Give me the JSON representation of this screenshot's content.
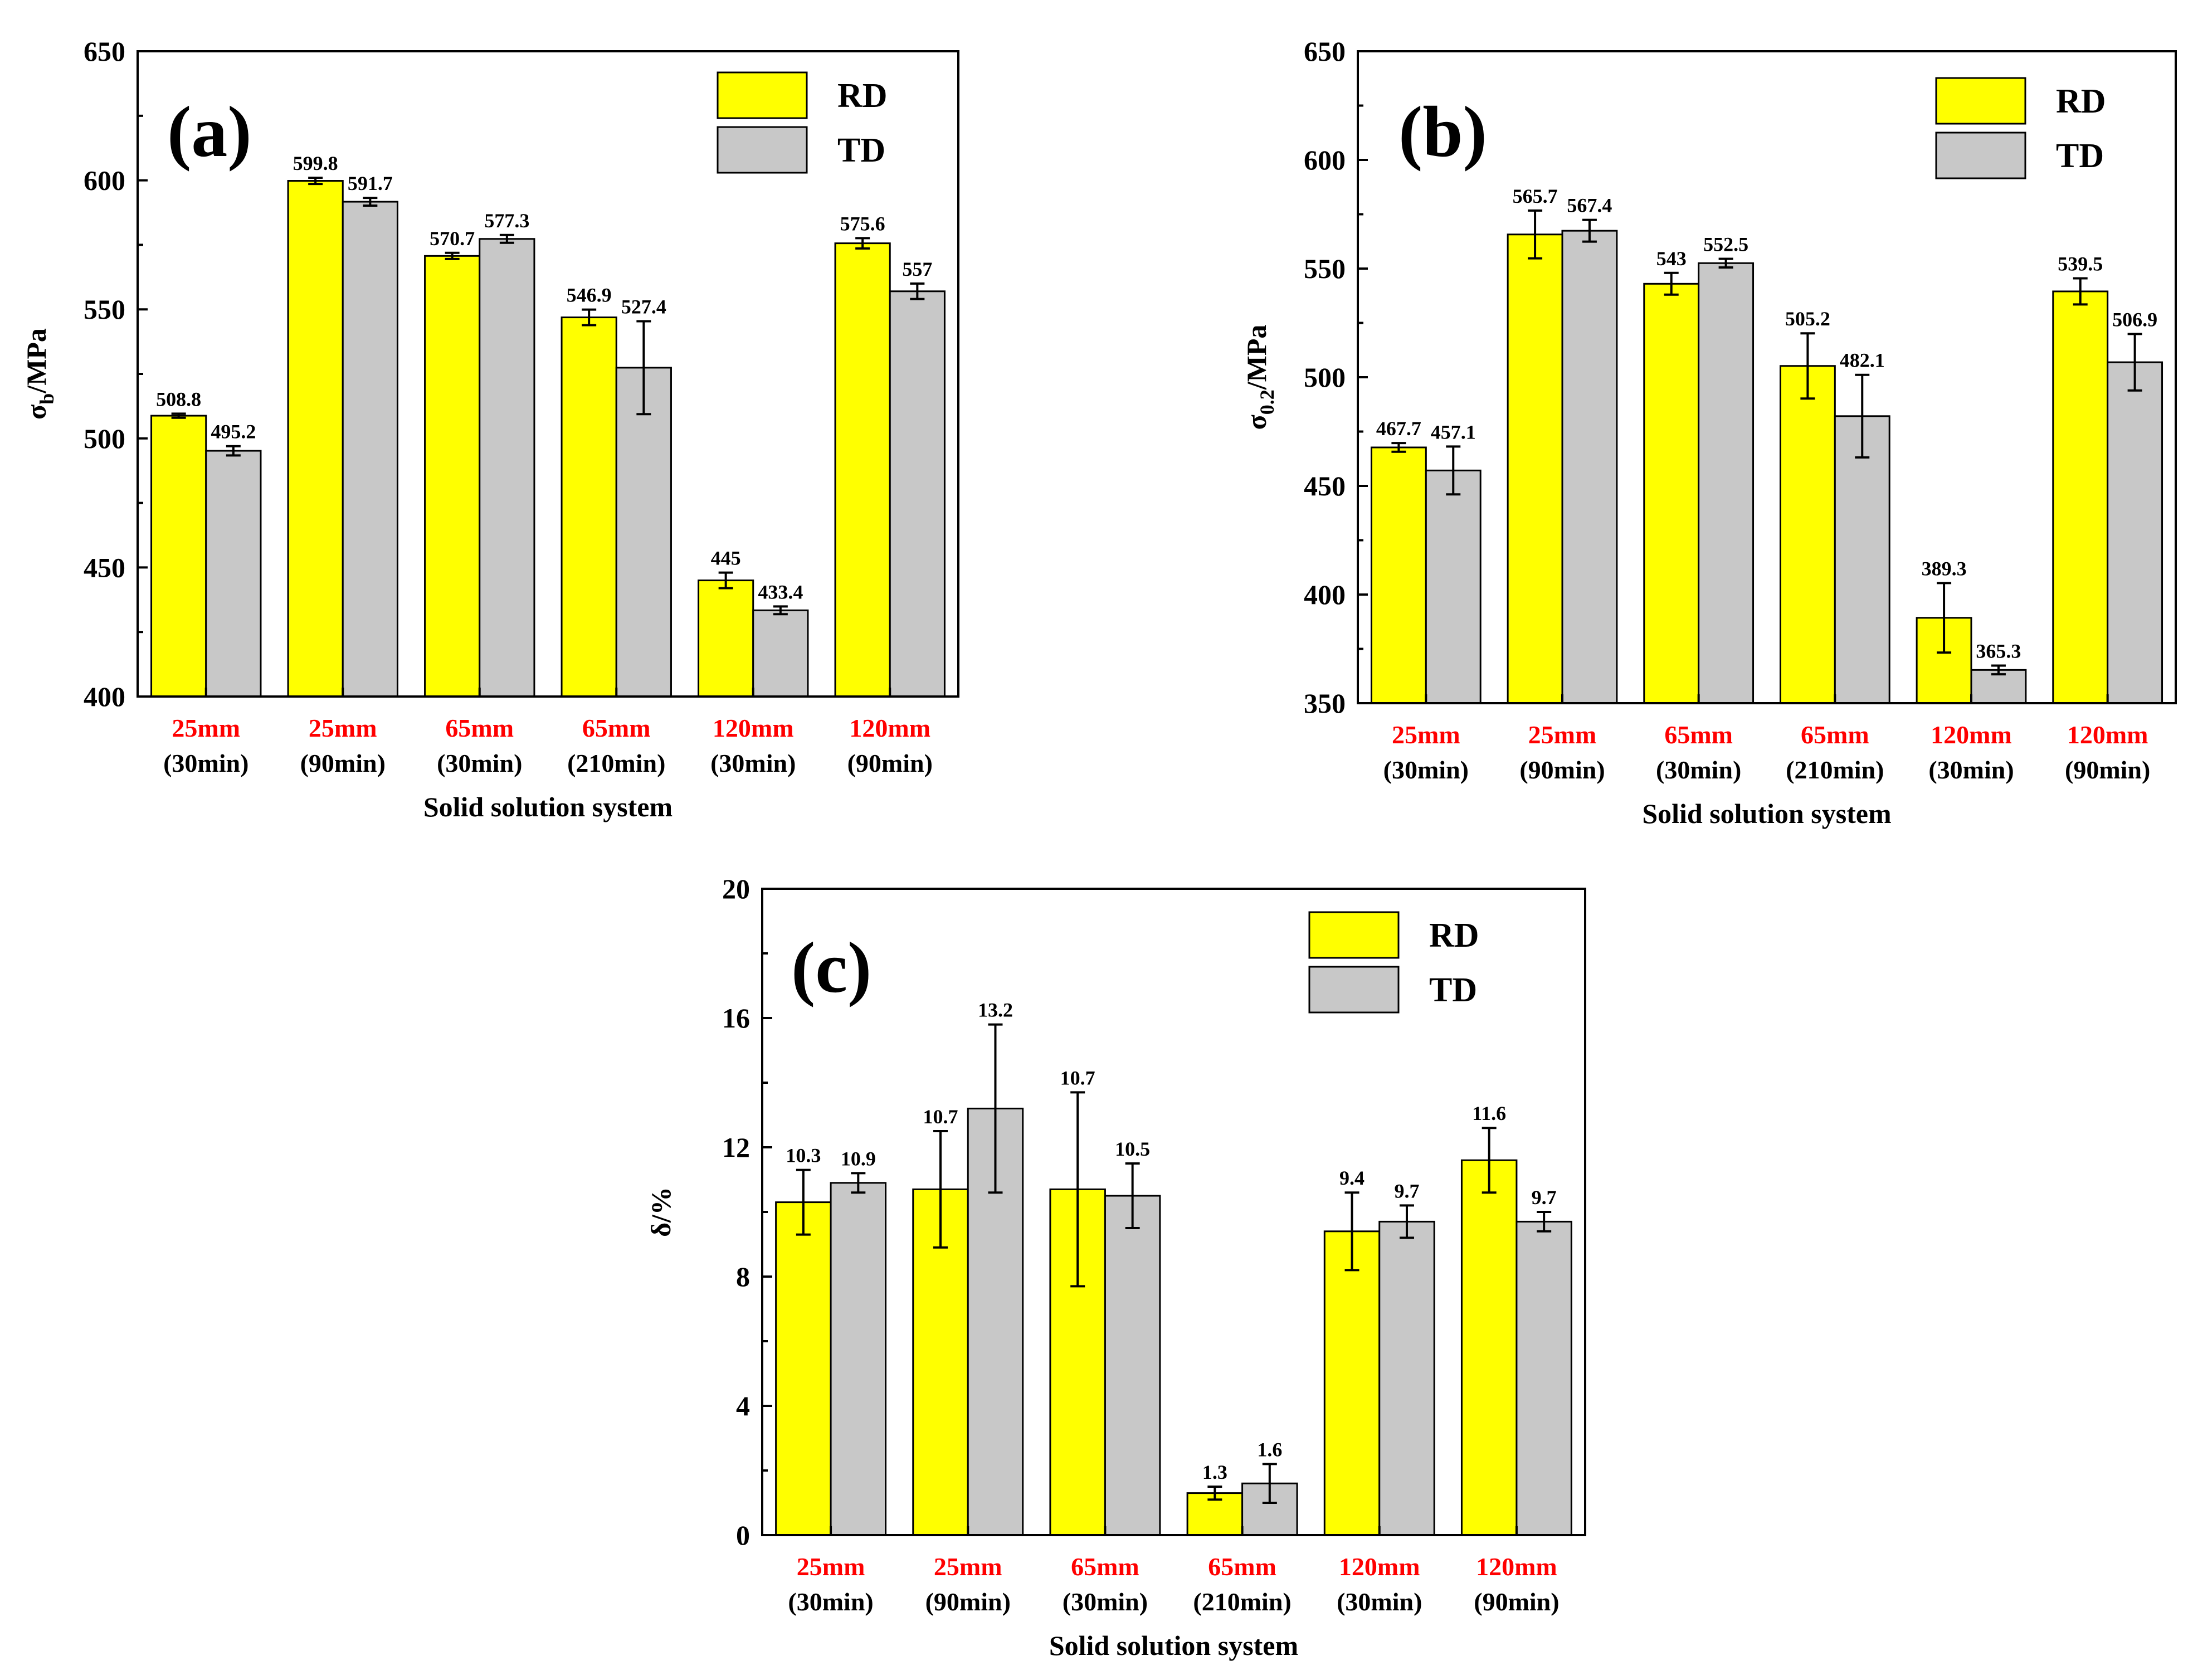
{
  "colors": {
    "RD": "#ffff00",
    "TD": "#c8c8c8",
    "category_highlight": "#ff0000"
  },
  "chart_data": [
    {
      "type": "bar",
      "panel_label": "(a)",
      "ylabel": "σb/MPa",
      "ylabel_main": "σ",
      "ylabel_sub": "b",
      "ylabel_rest": "/MPa",
      "xlabel": "Solid solution system",
      "ylim": [
        400,
        650
      ],
      "yticks": [
        400,
        450,
        500,
        550,
        600,
        650
      ],
      "categories": [
        {
          "top": "25mm",
          "bottom": "(30min)"
        },
        {
          "top": "25mm",
          "bottom": "(90min)"
        },
        {
          "top": "65mm",
          "bottom": "(30min)"
        },
        {
          "top": "65mm",
          "bottom": "(210min)"
        },
        {
          "top": "120mm",
          "bottom": "(30min)"
        },
        {
          "top": "120mm",
          "bottom": "(90min)"
        }
      ],
      "series": [
        {
          "name": "RD",
          "values": [
            508.8,
            599.8,
            570.7,
            546.9,
            445,
            575.6
          ],
          "labels": [
            "508.8",
            "599.8",
            "570.7",
            "546.9",
            "445",
            "575.6"
          ],
          "errors": [
            0.8,
            1.2,
            1.2,
            3,
            3,
            2
          ]
        },
        {
          "name": "TD",
          "values": [
            495.2,
            591.7,
            577.3,
            527.4,
            433.4,
            557
          ],
          "labels": [
            "495.2",
            "591.7",
            "577.3",
            "527.4",
            "433.4",
            "557"
          ],
          "errors": [
            1.8,
            1.5,
            1.5,
            18,
            1.5,
            3
          ]
        }
      ]
    },
    {
      "type": "bar",
      "panel_label": "(b)",
      "ylabel": "σ0.2/MPa",
      "ylabel_main": "σ",
      "ylabel_sub": "0.2",
      "ylabel_rest": "/MPa",
      "xlabel": "Solid solution system",
      "ylim": [
        350,
        650
      ],
      "yticks": [
        350,
        400,
        450,
        500,
        550,
        600,
        650
      ],
      "categories": [
        {
          "top": "25mm",
          "bottom": "(30min)"
        },
        {
          "top": "25mm",
          "bottom": "(90min)"
        },
        {
          "top": "65mm",
          "bottom": "(30min)"
        },
        {
          "top": "65mm",
          "bottom": "(210min)"
        },
        {
          "top": "120mm",
          "bottom": "(30min)"
        },
        {
          "top": "120mm",
          "bottom": "(90min)"
        }
      ],
      "series": [
        {
          "name": "RD",
          "values": [
            467.7,
            565.7,
            543,
            505.2,
            389.3,
            539.5
          ],
          "labels": [
            "467.7",
            "565.7",
            "543",
            "505.2",
            "389.3",
            "539.5"
          ],
          "errors": [
            2,
            11,
            5,
            15,
            16,
            6
          ]
        },
        {
          "name": "TD",
          "values": [
            457.1,
            567.4,
            552.5,
            482.1,
            365.3,
            506.9
          ],
          "labels": [
            "457.1",
            "567.4",
            "552.5",
            "482.1",
            "365.3",
            "506.9"
          ],
          "errors": [
            11,
            5,
            2,
            19,
            2,
            13
          ]
        }
      ]
    },
    {
      "type": "bar",
      "panel_label": "(c)",
      "ylabel": "δ/%",
      "ylabel_main": "δ/%",
      "ylabel_sub": "",
      "ylabel_rest": "",
      "xlabel": "Solid solution system",
      "ylim": [
        0,
        20
      ],
      "yticks": [
        0,
        4,
        8,
        12,
        16,
        20
      ],
      "categories": [
        {
          "top": "25mm",
          "bottom": "(30min)"
        },
        {
          "top": "25mm",
          "bottom": "(90min)"
        },
        {
          "top": "65mm",
          "bottom": "(30min)"
        },
        {
          "top": "65mm",
          "bottom": "(210min)"
        },
        {
          "top": "120mm",
          "bottom": "(30min)"
        },
        {
          "top": "120mm",
          "bottom": "(90min)"
        }
      ],
      "series": [
        {
          "name": "RD",
          "values": [
            10.3,
            10.7,
            10.7,
            1.3,
            9.4,
            11.6
          ],
          "labels": [
            "10.3",
            "10.7",
            "10.7",
            "1.3",
            "9.4",
            "11.6"
          ],
          "errors": [
            1,
            1.8,
            3,
            0.2,
            1.2,
            1
          ]
        },
        {
          "name": "TD",
          "values": [
            10.9,
            13.2,
            10.5,
            1.6,
            9.7,
            9.7
          ],
          "labels": [
            "10.9",
            "13.2",
            "10.5",
            "1.6",
            "9.7",
            "9.7"
          ],
          "errors": [
            0.3,
            2.6,
            1,
            0.6,
            0.5,
            0.3
          ]
        }
      ]
    }
  ]
}
